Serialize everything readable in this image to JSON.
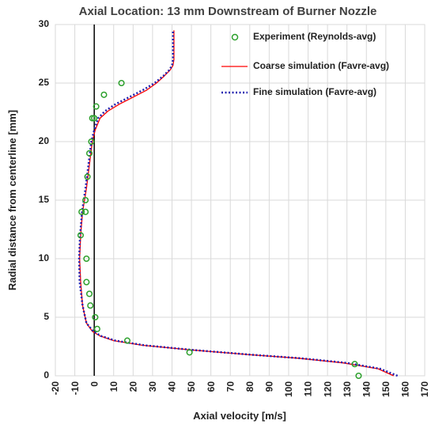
{
  "chart_data": {
    "type": "line",
    "title": "Axial Location: 13 mm Downstream of Burner Nozzle",
    "xlabel": "Axial velocity [m/s]",
    "ylabel": "Radial distance from centerline [mm]",
    "xlim": [
      -20,
      170
    ],
    "ylim": [
      0,
      30
    ],
    "xticks": [
      "-20",
      "-10",
      "0",
      "10",
      "20",
      "30",
      "40",
      "50",
      "60",
      "70",
      "80",
      "90",
      "100",
      "110",
      "120",
      "130",
      "140",
      "150",
      "160",
      "170"
    ],
    "yticks": [
      "0",
      "5",
      "10",
      "15",
      "20",
      "25",
      "30"
    ],
    "grid": true,
    "legend_position": "top-right",
    "zero_line": true,
    "series": [
      {
        "name": "Experiment (Reynolds-avg)",
        "kind": "scatter",
        "color": "#2ca02c",
        "x": [
          136,
          134,
          49,
          17,
          1.5,
          0.5,
          -2,
          -2.5,
          -4,
          -4,
          -7,
          -6.5,
          -4.5,
          -4.5,
          -3.5,
          -2.5,
          -1.5,
          -1,
          0,
          1,
          5,
          14
        ],
        "y": [
          0,
          1,
          2,
          3,
          4,
          5,
          6,
          7,
          8,
          10,
          12,
          14,
          14,
          15,
          17,
          19,
          20,
          22,
          22,
          23,
          24,
          25
        ]
      },
      {
        "name": "Coarse simulation (Favre-avg)",
        "kind": "line",
        "color": "#ff0000",
        "x": [
          154,
          146,
          128,
          105,
          80,
          50,
          25,
          10,
          3,
          -1,
          -4,
          -6,
          -7,
          -7.5,
          -7,
          -6,
          -4,
          -2.5,
          -1,
          0.5,
          3,
          7,
          13,
          20,
          27,
          32,
          36,
          39,
          40.5,
          41,
          41,
          41
        ],
        "y": [
          0,
          0.6,
          1.1,
          1.5,
          1.8,
          2.2,
          2.6,
          3,
          3.4,
          3.8,
          4.5,
          6,
          8,
          10,
          12,
          14,
          16,
          18,
          20,
          21,
          22,
          22.6,
          23.2,
          23.8,
          24.4,
          25,
          25.6,
          26.1,
          26.5,
          27,
          28.5,
          29.5
        ]
      },
      {
        "name": "Fine simulation (Favre-avg)",
        "kind": "line",
        "style": "dotted",
        "color": "#1f1fb0",
        "x": [
          156,
          147,
          130,
          106,
          81,
          51,
          26,
          11,
          3.5,
          -0.5,
          -4,
          -6,
          -7.5,
          -7.8,
          -7.3,
          -6.3,
          -4.5,
          -3,
          -1.5,
          0,
          2,
          5.5,
          11,
          18,
          25,
          31,
          35.5,
          38.5,
          40,
          40.5,
          40.5,
          40.5
        ],
        "y": [
          0,
          0.6,
          1.1,
          1.5,
          1.8,
          2.2,
          2.6,
          3,
          3.4,
          3.8,
          4.5,
          6,
          8,
          10,
          12,
          14,
          16,
          18,
          20,
          21,
          22,
          22.6,
          23.2,
          23.8,
          24.4,
          25,
          25.6,
          26.1,
          26.5,
          27,
          28.5,
          29.5
        ]
      }
    ]
  }
}
